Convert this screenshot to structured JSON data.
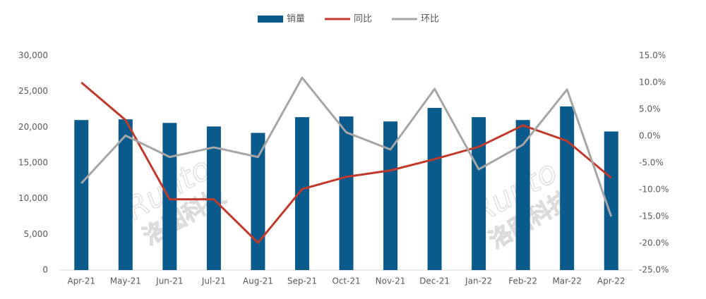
{
  "chart_data": {
    "type": "bar-line",
    "watermark": [
      "Runto",
      "洛图科技"
    ],
    "categories": [
      "Apr-21",
      "May-21",
      "Jun-21",
      "Jul-21",
      "Aug-21",
      "Sep-21",
      "Oct-21",
      "Nov-21",
      "Dec-21",
      "Jan-22",
      "Feb-22",
      "Mar-22",
      "Apr-22"
    ],
    "series": [
      {
        "name": "销量",
        "type": "bar",
        "color": "#0b5a8c",
        "values": [
          21000,
          21100,
          20600,
          20100,
          19200,
          21400,
          21500,
          20800,
          22700,
          21400,
          21000,
          22900,
          19400
        ]
      },
      {
        "name": "同比",
        "type": "line",
        "axis": "y2",
        "color": "#c0392b",
        "values": [
          10,
          3,
          -11.8,
          -11.8,
          -19.9,
          -9.9,
          -7.6,
          -6.4,
          -4.3,
          -2,
          2,
          -0.9,
          -7.8
        ]
      },
      {
        "name": "环比",
        "type": "line",
        "axis": "y2",
        "color": "#a6a6a6",
        "values": [
          -8.8,
          0.1,
          -3.9,
          -2.1,
          -3.9,
          10.9,
          0.7,
          -2.5,
          8.8,
          -6.2,
          -1.6,
          8.7,
          -15
        ]
      }
    ],
    "ylim": [
      0,
      30000
    ],
    "yticks": [
      0,
      {
        "value": 5000,
        "label": "5,000"
      },
      {
        "value": 10000,
        "label": "10,000"
      },
      {
        "value": 15000,
        "label": "15,000"
      },
      {
        "value": 20000,
        "label": "20,000"
      },
      {
        "value": 25000,
        "label": "25,000"
      },
      {
        "value": 30000,
        "label": "30,000"
      }
    ],
    "y2lim": [
      -25,
      15
    ],
    "y2ticks": [
      {
        "value": -25,
        "label": "-25.0%"
      },
      {
        "value": -20,
        "label": "-20.0%"
      },
      {
        "value": -15,
        "label": "-15.0%"
      },
      {
        "value": -10,
        "label": "-10.0%"
      },
      {
        "value": -5,
        "label": "-5.0%"
      },
      {
        "value": 0,
        "label": "0.0%"
      },
      {
        "value": 5,
        "label": "5.0%"
      },
      {
        "value": 10,
        "label": "10.0%"
      },
      {
        "value": 15,
        "label": "15.0%"
      }
    ],
    "legend": "top"
  }
}
